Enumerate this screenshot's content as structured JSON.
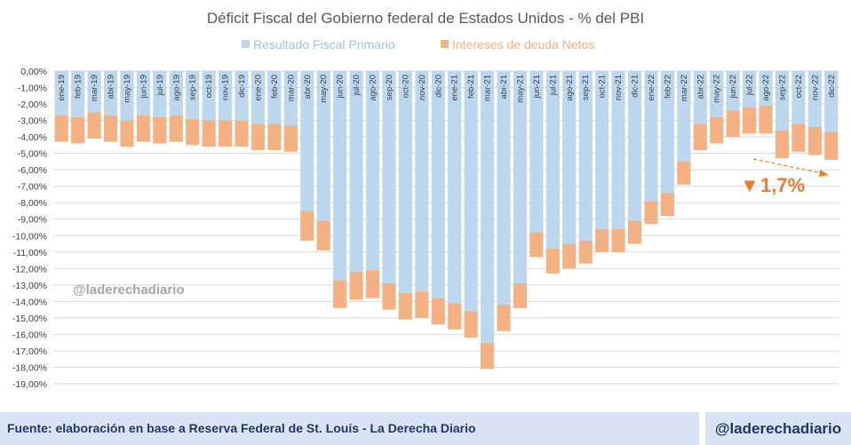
{
  "chart_data": {
    "type": "bar",
    "stacked": true,
    "title": "Déficit Fiscal del Gobierno federal de Estados Unidos - % del PBI",
    "legend_position": "top-center",
    "categories": [
      "ene-19",
      "feb-19",
      "mar-19",
      "abr-19",
      "may-19",
      "jun-19",
      "jul-19",
      "ago-19",
      "sep-19",
      "oct-19",
      "nov-19",
      "dic-19",
      "ene-20",
      "feb-20",
      "mar-20",
      "abr-20",
      "may-20",
      "jun-20",
      "jul-20",
      "ago-20",
      "sep-20",
      "oct-20",
      "nov-20",
      "dic-20",
      "ene-21",
      "feb-21",
      "mar-21",
      "abr-21",
      "may-21",
      "jun-21",
      "jul-21",
      "ago-21",
      "sep-21",
      "oct-21",
      "nov-21",
      "dic-21",
      "ene-22",
      "feb-22",
      "mar-22",
      "abr-22",
      "may-22",
      "jun-22",
      "jul-22",
      "ago-22",
      "sep-22",
      "oct-22",
      "nov-22",
      "dic-22"
    ],
    "series": [
      {
        "name": "Resultado Fiscal Primario",
        "color": "#bdd7ee",
        "values": [
          -2.7,
          -2.8,
          -2.5,
          -2.7,
          -3.0,
          -2.7,
          -2.8,
          -2.7,
          -2.9,
          -3.0,
          -3.0,
          -3.0,
          -3.2,
          -3.2,
          -3.3,
          -8.5,
          -9.1,
          -12.7,
          -12.2,
          -12.1,
          -12.9,
          -13.5,
          -13.4,
          -13.8,
          -14.1,
          -14.6,
          -16.5,
          -14.2,
          -12.9,
          -9.8,
          -10.8,
          -10.5,
          -10.3,
          -9.6,
          -9.6,
          -9.1,
          -7.9,
          -7.4,
          -5.5,
          -3.2,
          -2.8,
          -2.4,
          -2.2,
          -2.1,
          -3.6,
          -3.2,
          -3.4,
          -3.7
        ]
      },
      {
        "name": "Intereses de deuda Netos",
        "color": "#f4b183",
        "values": [
          -1.6,
          -1.6,
          -1.6,
          -1.6,
          -1.6,
          -1.6,
          -1.6,
          -1.6,
          -1.6,
          -1.6,
          -1.6,
          -1.6,
          -1.6,
          -1.6,
          -1.6,
          -1.8,
          -1.8,
          -1.7,
          -1.7,
          -1.7,
          -1.6,
          -1.6,
          -1.6,
          -1.6,
          -1.6,
          -1.6,
          -1.6,
          -1.6,
          -1.5,
          -1.5,
          -1.5,
          -1.5,
          -1.4,
          -1.4,
          -1.4,
          -1.4,
          -1.4,
          -1.4,
          -1.4,
          -1.6,
          -1.6,
          -1.6,
          -1.6,
          -1.7,
          -1.7,
          -1.7,
          -1.7,
          -1.7
        ]
      }
    ],
    "ylim": [
      -19,
      0
    ],
    "yticks": [
      "0,00%",
      "-1,00%",
      "-2,00%",
      "-3,00%",
      "-4,00%",
      "-5,00%",
      "-6,00%",
      "-7,00%",
      "-8,00%",
      "-9,00%",
      "-10,00%",
      "-11,00%",
      "-12,00%",
      "-13,00%",
      "-14,00%",
      "-15,00%",
      "-16,00%",
      "-17,00%",
      "-18,00%",
      "-19,00%"
    ],
    "grid": true,
    "annotation": {
      "text": "1,7%",
      "symbol": "▼"
    },
    "watermark": "@laderechadiario"
  },
  "footer": {
    "source": "Fuente: elaboración en base a Reserva Federal de St. Louis - La Derecha Diario",
    "handle": "@laderechadiario"
  }
}
